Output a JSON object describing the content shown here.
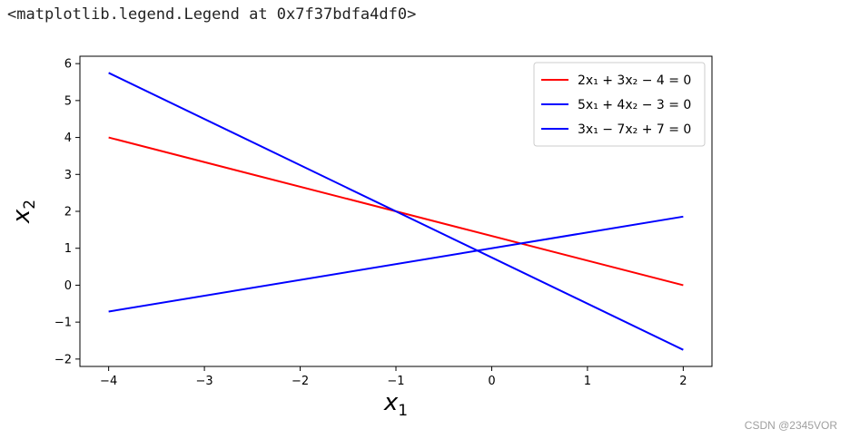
{
  "output_repr": "<matplotlib.legend.Legend at 0x7f37bdfa4df0>",
  "watermark": "CSDN @2345VOR",
  "colors": {
    "line1": "#ff0000",
    "line2": "#0000ff",
    "line3": "#0000ff",
    "frame": "#000000"
  },
  "chart_data": {
    "type": "line",
    "title": "",
    "xlabel": {
      "base": "x",
      "sub": "1"
    },
    "ylabel": {
      "base": "x",
      "sub": "2"
    },
    "xlim": [
      -4.3,
      2.3
    ],
    "ylim": [
      -2.2,
      6.2
    ],
    "xticks": [
      -4,
      -3,
      -2,
      -1,
      0,
      1,
      2
    ],
    "xtick_labels": [
      "−4",
      "−3",
      "−2",
      "−1",
      "0",
      "1",
      "2"
    ],
    "yticks": [
      -2,
      -1,
      0,
      1,
      2,
      3,
      4,
      5,
      6
    ],
    "ytick_labels": [
      "−2",
      "−1",
      "0",
      "1",
      "2",
      "3",
      "4",
      "5",
      "6"
    ],
    "grid": false,
    "legend_position": "top-right",
    "series": [
      {
        "name": "2x₁ + 3x₂ − 4 = 0",
        "color": "#ff0000",
        "x": [
          -4,
          2
        ],
        "y": [
          4.0,
          0.0
        ]
      },
      {
        "name": "5x₁ + 4x₂ − 3 = 0",
        "color": "#0000ff",
        "x": [
          -4,
          2
        ],
        "y": [
          5.75,
          -1.75
        ]
      },
      {
        "name": "3x₁ − 7x₂ + 7 = 0",
        "color": "#0000ff",
        "x": [
          -4,
          2
        ],
        "y": [
          -0.714,
          1.857
        ]
      }
    ]
  }
}
